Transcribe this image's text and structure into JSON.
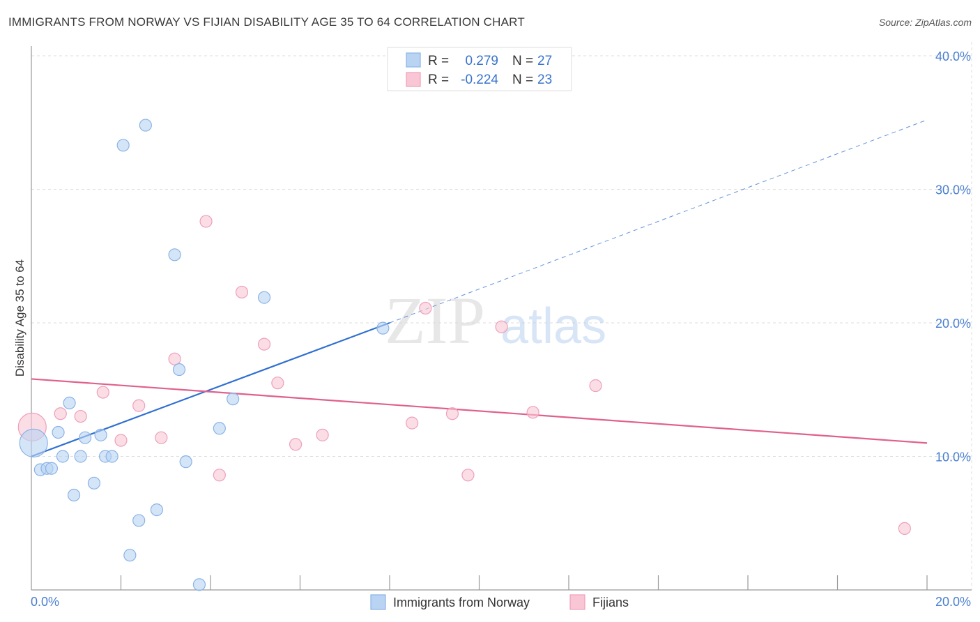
{
  "header": {
    "title": "IMMIGRANTS FROM NORWAY VS FIJIAN DISABILITY AGE 35 TO 64 CORRELATION CHART",
    "source": "Source: ZipAtlas.com"
  },
  "watermark": {
    "zip": "ZIP",
    "atlas": "atlas"
  },
  "colors": {
    "blue_fill": "#b9d3f3",
    "blue_stroke": "#8ab3e6",
    "blue_line": "#2f6fd1",
    "pink_fill": "#f9c6d6",
    "pink_stroke": "#ef9fb9",
    "pink_line": "#e0608c",
    "tick_text": "#4a7fd0",
    "grid": "#dddddd"
  },
  "legend": {
    "rows": [
      {
        "r_label": "R =",
        "r_value": "0.279",
        "n_label": "N =",
        "n_value": "27",
        "series": "blue"
      },
      {
        "r_label": "R =",
        "r_value": "-0.224",
        "n_label": "N =",
        "n_value": "23",
        "series": "pink"
      }
    ]
  },
  "bottom_legend": [
    {
      "label": "Immigrants from Norway",
      "series": "blue"
    },
    {
      "label": "Fijians",
      "series": "pink"
    }
  ],
  "chart_data": {
    "type": "scatter",
    "title": "IMMIGRANTS FROM NORWAY VS FIJIAN DISABILITY AGE 35 TO 64 CORRELATION CHART",
    "xlabel": "",
    "ylabel": "Disability Age 35 to 64",
    "xlim": [
      0,
      20
    ],
    "ylim": [
      0,
      40
    ],
    "x_tick_labels": [
      "0.0%",
      "20.0%"
    ],
    "y_ticks": [
      10,
      20,
      30,
      40
    ],
    "y_tick_labels": [
      "10.0%",
      "20.0%",
      "30.0%",
      "40.0%"
    ],
    "grid": true,
    "legend_position": "top-center",
    "series": [
      {
        "name": "Immigrants from Norway",
        "color": "blue",
        "points": [
          {
            "x": 0.05,
            "y": 11.0,
            "big": true
          },
          {
            "x": 0.2,
            "y": 9.0
          },
          {
            "x": 0.35,
            "y": 9.1
          },
          {
            "x": 0.45,
            "y": 9.1
          },
          {
            "x": 0.6,
            "y": 11.8
          },
          {
            "x": 0.7,
            "y": 10.0
          },
          {
            "x": 0.85,
            "y": 14.0
          },
          {
            "x": 0.95,
            "y": 7.1
          },
          {
            "x": 1.1,
            "y": 10.0
          },
          {
            "x": 1.2,
            "y": 11.4
          },
          {
            "x": 1.4,
            "y": 8.0
          },
          {
            "x": 1.55,
            "y": 11.6
          },
          {
            "x": 1.65,
            "y": 10.0
          },
          {
            "x": 1.8,
            "y": 10.0
          },
          {
            "x": 2.05,
            "y": 33.3
          },
          {
            "x": 2.2,
            "y": 2.6
          },
          {
            "x": 2.4,
            "y": 5.2
          },
          {
            "x": 2.55,
            "y": 34.8
          },
          {
            "x": 2.8,
            "y": 6.0
          },
          {
            "x": 3.2,
            "y": 25.1
          },
          {
            "x": 3.3,
            "y": 16.5
          },
          {
            "x": 3.45,
            "y": 9.6
          },
          {
            "x": 3.75,
            "y": 0.4
          },
          {
            "x": 4.2,
            "y": 12.1
          },
          {
            "x": 4.5,
            "y": 14.3
          },
          {
            "x": 5.2,
            "y": 21.9
          },
          {
            "x": 7.85,
            "y": 19.6
          }
        ],
        "trend": {
          "x1": 0,
          "y1": 10.0,
          "x2": 8.0,
          "y2": 20.0,
          "dash_to_x": 20.0,
          "dash_to_y": 35.2
        }
      },
      {
        "name": "Fijians",
        "color": "pink",
        "points": [
          {
            "x": 0.02,
            "y": 12.2,
            "big": true
          },
          {
            "x": 0.65,
            "y": 13.2
          },
          {
            "x": 1.1,
            "y": 13.0
          },
          {
            "x": 1.6,
            "y": 14.8
          },
          {
            "x": 2.0,
            "y": 11.2
          },
          {
            "x": 2.4,
            "y": 13.8
          },
          {
            "x": 2.9,
            "y": 11.4
          },
          {
            "x": 3.2,
            "y": 17.3
          },
          {
            "x": 3.9,
            "y": 27.6
          },
          {
            "x": 4.2,
            "y": 8.6
          },
          {
            "x": 4.7,
            "y": 22.3
          },
          {
            "x": 5.2,
            "y": 18.4
          },
          {
            "x": 5.5,
            "y": 15.5
          },
          {
            "x": 5.9,
            "y": 10.9
          },
          {
            "x": 6.5,
            "y": 11.6
          },
          {
            "x": 8.5,
            "y": 12.5
          },
          {
            "x": 8.8,
            "y": 21.1
          },
          {
            "x": 9.4,
            "y": 13.2
          },
          {
            "x": 9.75,
            "y": 8.6
          },
          {
            "x": 10.5,
            "y": 19.7
          },
          {
            "x": 11.2,
            "y": 13.3
          },
          {
            "x": 12.6,
            "y": 15.3
          },
          {
            "x": 19.5,
            "y": 4.6
          }
        ],
        "trend": {
          "x1": 0,
          "y1": 15.8,
          "x2": 20.0,
          "y2": 11.0
        }
      }
    ]
  }
}
